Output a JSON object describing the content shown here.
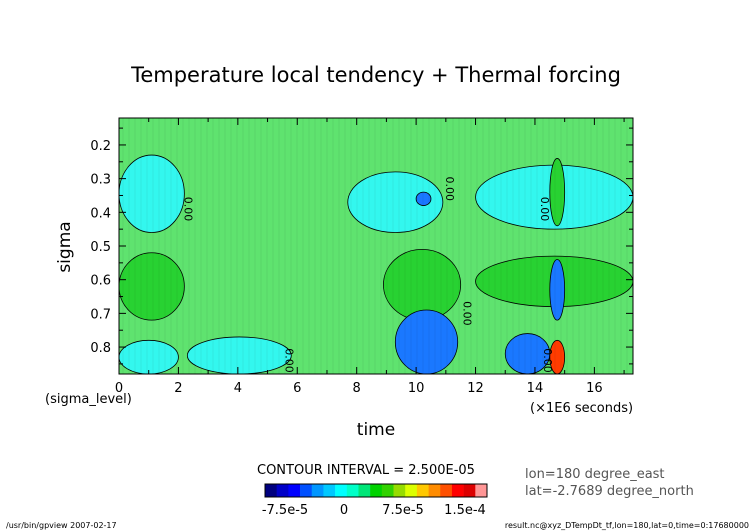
{
  "chart_data": {
    "type": "heatmap",
    "title": "Temperature local tendency + Thermal forcing",
    "xlabel": "time",
    "ylabel": "sigma",
    "x_axis_note_left": "(sigma_level)",
    "x_axis_note_right": "(×1E6 seconds)",
    "xlim": [
      0,
      17.3
    ],
    "ylim": [
      0.88,
      0.12
    ],
    "x_ticks": [
      0,
      2,
      4,
      6,
      8,
      10,
      12,
      14,
      16
    ],
    "x_tick_labels": [
      "0",
      "2",
      "4",
      "6",
      "8",
      "10",
      "12",
      "14",
      "16"
    ],
    "y_ticks": [
      0.2,
      0.3,
      0.4,
      0.5,
      0.6,
      0.7,
      0.8
    ],
    "y_tick_labels": [
      "0.2",
      "0.3",
      "0.4",
      "0.5",
      "0.6",
      "0.7",
      "0.8"
    ],
    "contour_interval_text": "CONTOUR INTERVAL = 2.500E-05",
    "contour_labels": [
      {
        "text": "0.00",
        "x": 2.2,
        "y": 0.39
      },
      {
        "text": "0.00",
        "x": 11.0,
        "y": 0.33
      },
      {
        "text": "0.00",
        "x": 14.2,
        "y": 0.39
      },
      {
        "text": "0.00",
        "x": 11.6,
        "y": 0.7
      },
      {
        "text": "0.00",
        "x": 5.6,
        "y": 0.84
      },
      {
        "text": "0.00",
        "x": 14.3,
        "y": 0.84
      }
    ],
    "regions": [
      {
        "level": "negative",
        "note": "cyan band near top",
        "x_range": [
          0,
          2.2
        ],
        "y_range": [
          0.23,
          0.46
        ]
      },
      {
        "level": "negative",
        "x_range": [
          7.7,
          10.9
        ],
        "y_range": [
          0.28,
          0.46
        ]
      },
      {
        "level": "strong_negative",
        "x_range": [
          10.0,
          10.5
        ],
        "y_range": [
          0.34,
          0.38
        ]
      },
      {
        "level": "negative",
        "x_range": [
          12.0,
          17.3
        ],
        "y_range": [
          0.26,
          0.45
        ]
      },
      {
        "level": "positive",
        "x_range": [
          0,
          2.2
        ],
        "y_range": [
          0.52,
          0.72
        ]
      },
      {
        "level": "positive",
        "x_range": [
          8.9,
          11.5
        ],
        "y_range": [
          0.51,
          0.72
        ]
      },
      {
        "level": "positive",
        "x_range": [
          12.0,
          17.3
        ],
        "y_range": [
          0.53,
          0.68
        ]
      },
      {
        "level": "negative",
        "x_range": [
          0,
          2.0
        ],
        "y_range": [
          0.78,
          0.88
        ]
      },
      {
        "level": "negative",
        "x_range": [
          2.3,
          5.8
        ],
        "y_range": [
          0.77,
          0.88
        ]
      },
      {
        "level": "strong_negative",
        "x_range": [
          9.3,
          11.4
        ],
        "y_range": [
          0.69,
          0.88
        ]
      },
      {
        "level": "strong_negative",
        "x_range": [
          13.0,
          14.5
        ],
        "y_range": [
          0.76,
          0.88
        ]
      },
      {
        "level": "strong_positive",
        "x_range": [
          14.5,
          15.0
        ],
        "y_range": [
          0.78,
          0.88
        ]
      },
      {
        "level": "strong_negative",
        "x_range": [
          14.5,
          15.0
        ],
        "y_range": [
          0.54,
          0.72
        ]
      },
      {
        "level": "positive",
        "x_range": [
          14.5,
          15.0
        ],
        "y_range": [
          0.24,
          0.44
        ]
      }
    ],
    "colorbar": {
      "colors": [
        "#00007f",
        "#0000c8",
        "#0000ff",
        "#0050ff",
        "#0096ff",
        "#00c8ff",
        "#00ffff",
        "#00ffc8",
        "#00e678",
        "#00d200",
        "#32d200",
        "#96dc00",
        "#dcff00",
        "#ffc800",
        "#ff8c00",
        "#ff5000",
        "#ff0000",
        "#dc0000",
        "#ff9696"
      ],
      "tick_labels": [
        "-7.5e-5",
        "0",
        "7.5e-5",
        "1.5e-4"
      ]
    }
  },
  "info": {
    "lon": "lon=180 degree_east",
    "lat": "lat=-2.7689 degree_north"
  },
  "footer": {
    "left": "/usr/bin/gpview  2007-02-17",
    "right": "result.nc@xyz_DTempDt_tf,lon=180,lat=0,time=0:17680000"
  },
  "colors": {
    "background": "#5fe36f",
    "negative": "#33f7ee",
    "strong_negative": "#1a78ff",
    "positive": "#28d232",
    "strong_positive": "#ff3c00"
  }
}
